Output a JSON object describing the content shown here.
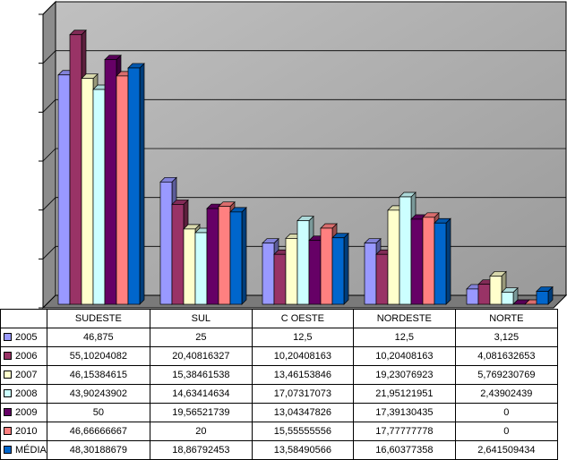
{
  "chart_data": {
    "type": "bar",
    "categories": [
      "SUDESTE",
      "SUL",
      "C OESTE",
      "NORDESTE",
      "NORTE"
    ],
    "series": [
      {
        "name": "2005",
        "color": "#9999ff",
        "values": [
          "46,875",
          "25",
          "12,5",
          "12,5",
          "3,125"
        ]
      },
      {
        "name": "2006",
        "color": "#993366",
        "values": [
          "55,10204082",
          "20,40816327",
          "10,20408163",
          "10,20408163",
          "4,081632653"
        ]
      },
      {
        "name": "2007",
        "color": "#ffffcc",
        "values": [
          "46,15384615",
          "15,38461538",
          "13,46153846",
          "19,23076923",
          "5,769230769"
        ]
      },
      {
        "name": "2008",
        "color": "#ccffff",
        "values": [
          "43,90243902",
          "14,63414634",
          "17,07317073",
          "21,95121951",
          "2,43902439"
        ]
      },
      {
        "name": "2009",
        "color": "#660066",
        "values": [
          "50",
          "19,56521739",
          "13,04347826",
          "17,39130435",
          "0"
        ]
      },
      {
        "name": "2010",
        "color": "#ff8080",
        "values": [
          "46,66666667",
          "20",
          "15,55555556",
          "17,77777778",
          "0"
        ]
      },
      {
        "name": "MÉDIA",
        "color": "#0066cc",
        "values": [
          "48,30188679",
          "18,86792453",
          "13,58490566",
          "16,60377358",
          "2,641509434"
        ]
      }
    ],
    "ylim": [
      0,
      60
    ],
    "grid": true,
    "legend": "table-left"
  }
}
